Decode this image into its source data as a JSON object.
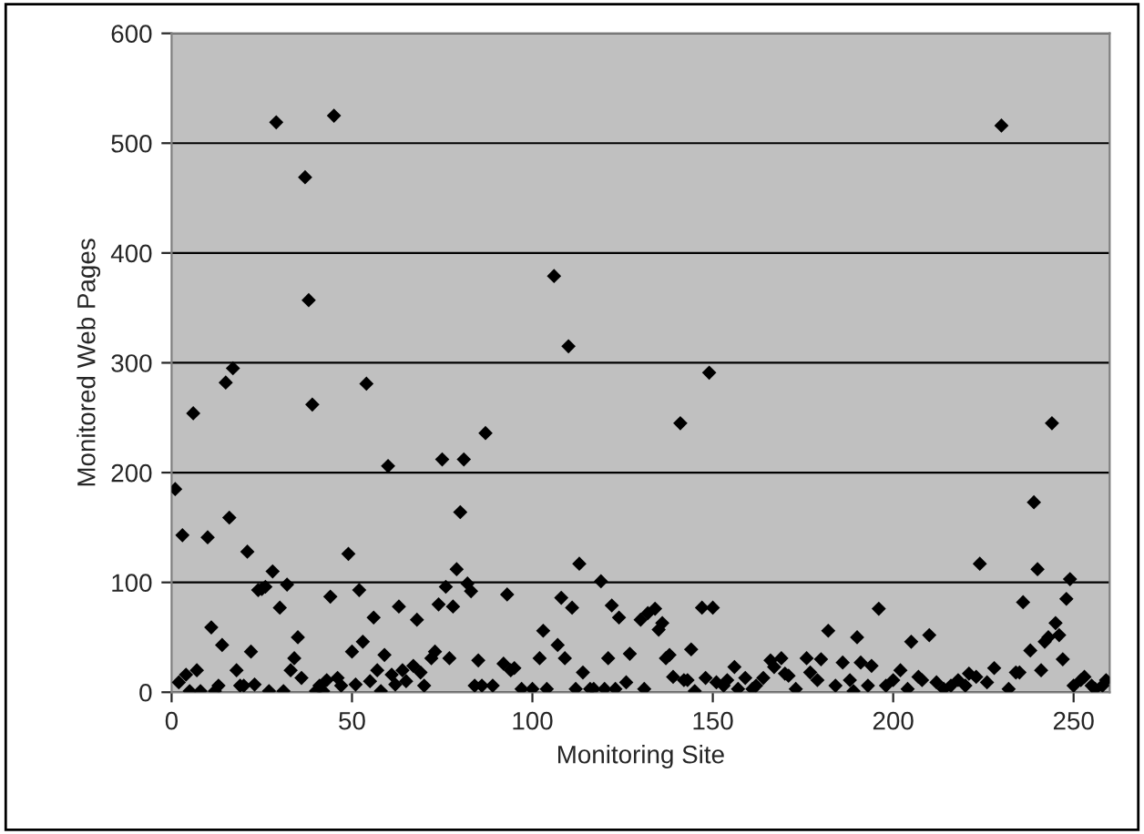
{
  "chart_data": {
    "type": "scatter",
    "xlabel": "Monitoring Site",
    "ylabel": "Monitored Web Pages",
    "x": [
      1,
      2,
      3,
      4,
      5,
      6,
      7,
      8,
      10,
      11,
      12,
      13,
      14,
      15,
      16,
      17,
      18,
      19,
      20,
      21,
      22,
      23,
      24,
      25,
      26,
      27,
      28,
      29,
      30,
      31,
      32,
      33,
      34,
      35,
      36,
      37,
      38,
      39,
      40,
      41,
      42,
      43,
      44,
      45,
      46,
      47,
      49,
      50,
      51,
      52,
      53,
      54,
      55,
      56,
      57,
      58,
      59,
      60,
      61,
      62,
      63,
      64,
      65,
      67,
      68,
      69,
      70,
      72,
      73,
      74,
      75,
      76,
      77,
      78,
      79,
      80,
      81,
      82,
      83,
      84,
      85,
      86,
      87,
      89,
      92,
      93,
      94,
      95,
      97,
      100,
      102,
      103,
      104,
      106,
      107,
      108,
      109,
      110,
      111,
      112,
      113,
      114,
      116,
      117,
      119,
      120,
      121,
      122,
      123,
      124,
      126,
      127,
      130,
      131,
      132,
      134,
      135,
      136,
      137,
      138,
      139,
      141,
      142,
      143,
      144,
      145,
      147,
      148,
      149,
      150,
      151,
      153,
      154,
      156,
      157,
      159,
      161,
      162,
      164,
      166,
      167,
      169,
      170,
      171,
      173,
      176,
      177,
      179,
      180,
      182,
      184,
      186,
      188,
      189,
      190,
      191,
      193,
      194,
      196,
      198,
      200,
      202,
      204,
      205,
      207,
      208,
      210,
      212,
      214,
      216,
      218,
      220,
      221,
      223,
      224,
      226,
      228,
      230,
      232,
      234,
      235,
      236,
      238,
      239,
      240,
      241,
      242,
      243,
      244,
      245,
      246,
      247,
      248,
      249,
      250,
      252,
      253,
      255,
      256,
      258,
      259
    ],
    "values": [
      185,
      9,
      143,
      16,
      1,
      254,
      20,
      1,
      141,
      59,
      1,
      6,
      43,
      282,
      159,
      295,
      20,
      6,
      6,
      128,
      37,
      7,
      93,
      94,
      96,
      1,
      110,
      519,
      77,
      1,
      98,
      20,
      31,
      50,
      13,
      469,
      357,
      262,
      1,
      6,
      1,
      11,
      87,
      525,
      13,
      6,
      126,
      37,
      7,
      93,
      46,
      281,
      10,
      68,
      20,
      1,
      34,
      206,
      16,
      7,
      78,
      20,
      10,
      24,
      66,
      18,
      6,
      31,
      37,
      80,
      212,
      96,
      31,
      78,
      112,
      164,
      212,
      99,
      92,
      6,
      29,
      6,
      236,
      6,
      26,
      89,
      20,
      22,
      3,
      3,
      31,
      56,
      3,
      379,
      43,
      86,
      31,
      315,
      77,
      3,
      117,
      18,
      3,
      3,
      101,
      3,
      31,
      79,
      3,
      68,
      9,
      35,
      66,
      3,
      72,
      76,
      57,
      63,
      31,
      34,
      14,
      245,
      11,
      11,
      39,
      1,
      77,
      13,
      291,
      77,
      9,
      6,
      11,
      23,
      3,
      13,
      3,
      6,
      13,
      29,
      23,
      31,
      17,
      15,
      3,
      31,
      18,
      11,
      30,
      56,
      6,
      27,
      11,
      1,
      50,
      27,
      6,
      24,
      76,
      6,
      11,
      20,
      3,
      46,
      14,
      11,
      52,
      9,
      3,
      6,
      11,
      6,
      17,
      14,
      117,
      9,
      22,
      516,
      3,
      18,
      18,
      82,
      38,
      173,
      112,
      20,
      46,
      50,
      245,
      63,
      52,
      30,
      85,
      103,
      6,
      11,
      14,
      6,
      3,
      6,
      11
    ],
    "color": "#000000",
    "marker": "diamond",
    "xlim": [
      0,
      260
    ],
    "xticks": [
      0,
      50,
      100,
      150,
      200,
      250
    ],
    "ylim": [
      0,
      600
    ],
    "yticks": [
      0,
      100,
      200,
      300,
      400,
      500,
      600
    ],
    "grid": "y"
  }
}
